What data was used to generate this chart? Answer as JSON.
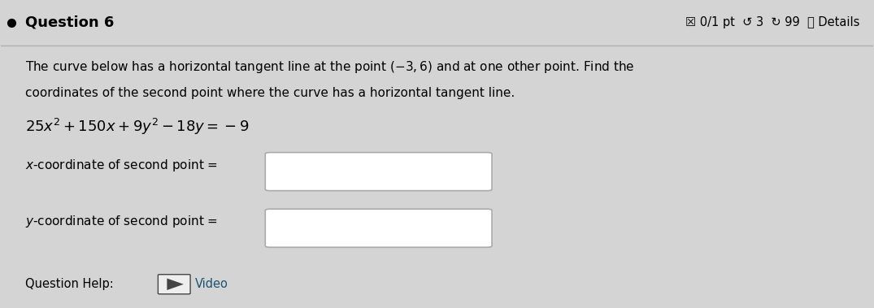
{
  "title": "Question 6",
  "header_right": "☒ 0/1 pt  ↺ 3  ↻ 99  ⓘ Details",
  "body_line1": "The curve below has a horizontal tangent line at the point $(-3, 6)$ and at one other point. Find the",
  "body_line2": "coordinates of the second point where the curve has a horizontal tangent line.",
  "equation": "$25x^2 + 150x + 9y^2 - 18y = -9$",
  "label_x": "$x$-coordinate of second point =",
  "label_y": "$y$-coordinate of second point =",
  "footer_label": "Question Help:",
  "footer_video": "Video",
  "bg_color": "#d4d4d4",
  "white_color": "#ffffff",
  "text_color": "#000000",
  "box_border": "#aaaaaa",
  "bullet_color": "#000000",
  "divider_color": "#b0b0b0",
  "video_text_color": "#1a5276",
  "icon_border": "#444444",
  "icon_fill": "#eeeeee",
  "icon_triangle": "#444444"
}
